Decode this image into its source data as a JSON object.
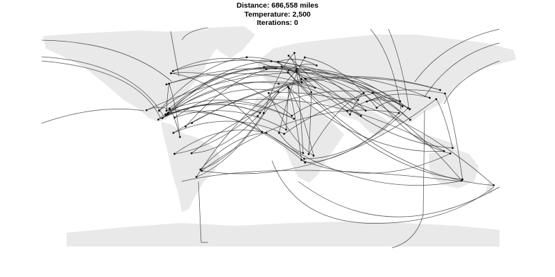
{
  "header": {
    "distance_line": "Distance: 686,558 miles",
    "temperature_line": "Temperature: 2,500",
    "iterations_line": "Iterations: 0"
  },
  "map": {
    "projection": "equirectangular world map",
    "land_color": "#e9e9e9",
    "route_color": "#333333",
    "city_color": "#111111",
    "route_style": "great-circle arcs between visited cities (random initial tour)"
  }
}
